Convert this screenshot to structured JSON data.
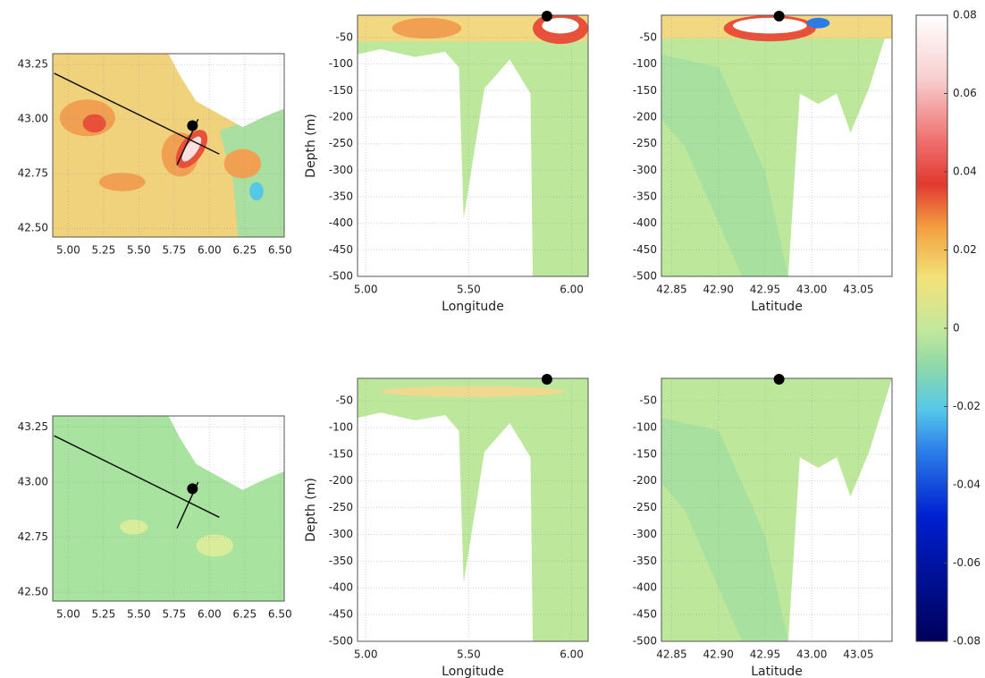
{
  "chart_data": [
    {
      "type": "map",
      "xlim": [
        4.89,
        6.53
      ],
      "ylim": [
        42.46,
        43.3
      ],
      "xticks": [
        {
          "value": 5,
          "label": "5.00"
        },
        5.25,
        {
          "value": 5.5,
          "label": "5.50"
        },
        5.75,
        {
          "value": 6,
          "label": "6.00"
        },
        6.25,
        {
          "value": 6.5,
          "label": "6.50"
        }
      ],
      "yticks": [
        {
          "value": 42.5,
          "label": "42.50"
        },
        42.75,
        {
          "value": 43,
          "label": "43.00"
        },
        43.25
      ],
      "grid": true,
      "marker": {
        "x": 5.88,
        "y": 42.97
      },
      "transects": [
        {
          "x": [
            4.9,
            6.07
          ],
          "y": [
            43.21,
            42.84
          ]
        },
        {
          "x": [
            5.77,
            5.92
          ],
          "y": [
            42.79,
            43.0
          ]
        }
      ]
    },
    {
      "type": "section",
      "xlabel": "Longitude",
      "ylabel": "Depth (m)",
      "xlim": [
        4.96,
        6.08
      ],
      "ylim": [
        -500,
        -8
      ],
      "xticks": [
        {
          "value": 5,
          "label": "5.00"
        },
        {
          "value": 5.5,
          "label": "5.50"
        },
        {
          "value": 6,
          "label": "6.00"
        }
      ],
      "yticks": [
        -50,
        -100,
        -150,
        -200,
        -250,
        -300,
        -350,
        -400,
        -450,
        -500
      ],
      "grid": true,
      "marker": {
        "x": 5.88,
        "y": -8
      }
    },
    {
      "type": "section",
      "xlabel": "Latitude",
      "xlim": [
        42.839,
        43.086
      ],
      "ylim": [
        -500,
        -8
      ],
      "xticks": [
        42.85,
        {
          "value": 42.9,
          "label": "42.90"
        },
        42.95,
        {
          "value": 43,
          "label": "43.00"
        },
        43.05
      ],
      "yticks": [
        -50,
        -100,
        -150,
        -200,
        -250,
        -300,
        -350,
        -400,
        -450,
        -500
      ],
      "grid": true,
      "marker": {
        "x": 42.965,
        "y": -8
      }
    },
    {
      "type": "map",
      "xlim": [
        4.89,
        6.53
      ],
      "ylim": [
        42.46,
        43.3
      ],
      "xticks": [
        {
          "value": 5,
          "label": "5.00"
        },
        5.25,
        {
          "value": 5.5,
          "label": "5.50"
        },
        5.75,
        {
          "value": 6,
          "label": "6.00"
        },
        6.25,
        {
          "value": 6.5,
          "label": "6.50"
        }
      ],
      "yticks": [
        {
          "value": 42.5,
          "label": "42.50"
        },
        42.75,
        {
          "value": 43,
          "label": "43.00"
        },
        43.25
      ],
      "grid": true,
      "marker": {
        "x": 5.88,
        "y": 42.97
      },
      "transects": [
        {
          "x": [
            4.9,
            6.07
          ],
          "y": [
            43.21,
            42.84
          ]
        },
        {
          "x": [
            5.77,
            5.92
          ],
          "y": [
            42.79,
            43.0
          ]
        }
      ]
    },
    {
      "type": "section",
      "xlabel": "Longitude",
      "ylabel": "Depth (m)",
      "xlim": [
        4.96,
        6.08
      ],
      "ylim": [
        -500,
        -8
      ],
      "xticks": [
        {
          "value": 5,
          "label": "5.00"
        },
        {
          "value": 5.5,
          "label": "5.50"
        },
        {
          "value": 6,
          "label": "6.00"
        }
      ],
      "yticks": [
        -50,
        -100,
        -150,
        -200,
        -250,
        -300,
        -350,
        -400,
        -450,
        -500
      ],
      "grid": true,
      "marker": {
        "x": 5.88,
        "y": -8
      }
    },
    {
      "type": "section",
      "xlabel": "Latitude",
      "xlim": [
        42.839,
        43.086
      ],
      "ylim": [
        -500,
        -8
      ],
      "xticks": [
        42.85,
        {
          "value": 42.9,
          "label": "42.90"
        },
        42.95,
        {
          "value": 43,
          "label": "43.00"
        },
        43.05
      ],
      "yticks": [
        -50,
        -100,
        -150,
        -200,
        -250,
        -300,
        -350,
        -400,
        -450,
        -500
      ],
      "grid": true,
      "marker": {
        "x": 42.965,
        "y": -8
      }
    },
    {
      "type": "colorbar",
      "ylim": [
        -0.08,
        0.08
      ],
      "yticks": [
        0.08,
        0.06,
        0.04,
        0.02,
        0,
        -0.02,
        -0.04,
        -0.06,
        -0.08
      ]
    }
  ]
}
